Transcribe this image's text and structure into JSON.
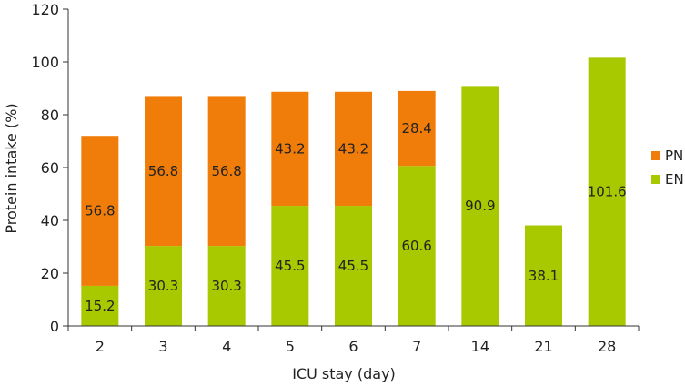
{
  "chart_data": {
    "type": "bar",
    "stacked": true,
    "xlabel": "ICU stay (day)",
    "ylabel": "Protein intake (%)",
    "ylim": [
      0,
      120
    ],
    "yticks": [
      0,
      20,
      40,
      60,
      80,
      100,
      120
    ],
    "categories": [
      "2",
      "3",
      "4",
      "5",
      "6",
      "7",
      "14",
      "21",
      "28"
    ],
    "series": [
      {
        "name": "EN",
        "color": "#a8c800",
        "values": [
          15.2,
          30.3,
          30.3,
          45.5,
          45.5,
          60.6,
          90.9,
          38.1,
          101.6
        ]
      },
      {
        "name": "PN",
        "color": "#f07d0a",
        "values": [
          56.8,
          56.8,
          56.8,
          43.2,
          43.2,
          28.4,
          null,
          null,
          null
        ]
      }
    ],
    "legend": {
      "placement": "right",
      "order": [
        "PN",
        "EN"
      ]
    },
    "grid": false
  }
}
